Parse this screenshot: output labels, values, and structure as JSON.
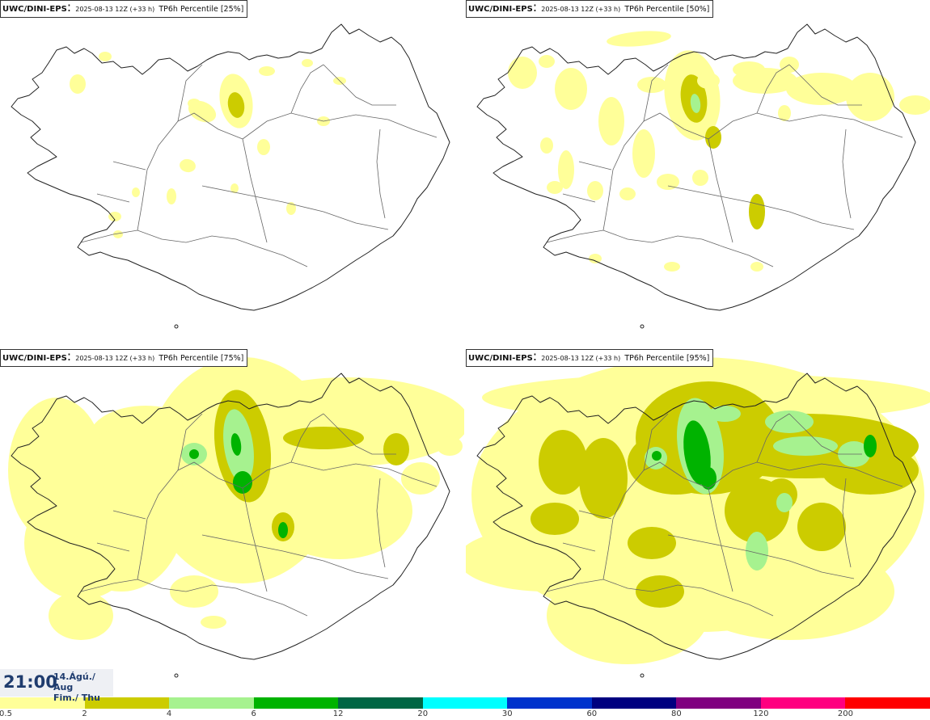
{
  "panels": [
    {
      "model": "UWC/DINI-EPS",
      "run": "2025-08-13 12Z (+33 h)",
      "field": "TP6h Percentile [25%]",
      "percentile": 25
    },
    {
      "model": "UWC/DINI-EPS",
      "run": "2025-08-13 12Z (+33 h)",
      "field": "TP6h Percentile [50%]",
      "percentile": 50
    },
    {
      "model": "UWC/DINI-EPS",
      "run": "2025-08-13 12Z (+33 h)",
      "field": "TP6h Percentile [75%]",
      "percentile": 75
    },
    {
      "model": "UWC/DINI-EPS",
      "run": "2025-08-13 12Z (+33 h)",
      "field": "TP6h Percentile [95%]",
      "percentile": 95
    }
  ],
  "time": {
    "clock": "21:00",
    "date_line1": "14.Ágú./ Aug",
    "date_line2": "Fim./ Thu"
  },
  "legend": {
    "labels": [
      "0.5",
      "2",
      "4",
      "6",
      "12",
      "20",
      "30",
      "60",
      "80",
      "120",
      "200"
    ],
    "colors": [
      "#ffff99",
      "#cccc00",
      "#a6f28f",
      "#00b300",
      "#006644",
      "#00ffff",
      "#0033cc",
      "#000080",
      "#800080",
      "#ff0080",
      "#ff0000"
    ]
  }
}
